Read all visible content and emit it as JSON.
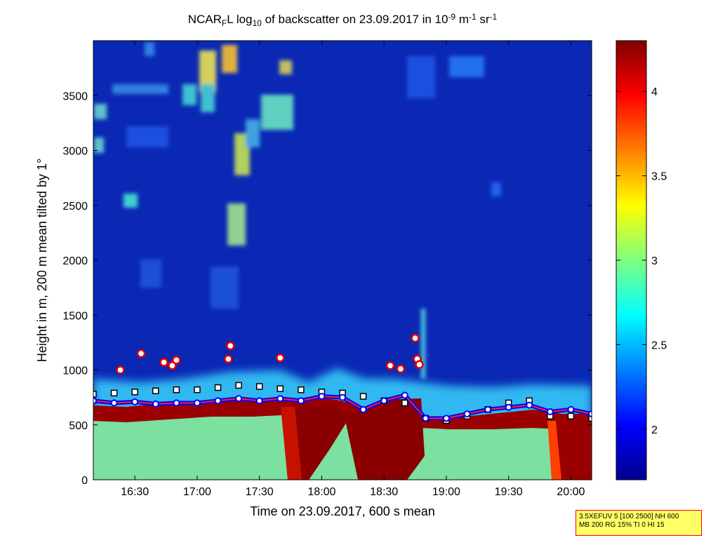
{
  "chart_data": {
    "type": "heatmap",
    "title": {
      "prefix": "NCAR",
      "sub1": "F",
      "mid1": "L log",
      "sub2": "10",
      "mid2": " of backscatter on 23.09.2017 in 10",
      "sup1": "-9",
      "mid3": " m",
      "sup2": "-1",
      "mid4": " sr",
      "sup3": "-1"
    },
    "xlabel": "Time on 23.09.2017, 600 s mean",
    "ylabel": "Height in m, 200 m mean tilted by 1°",
    "xlim": [
      "16:10",
      "20:10"
    ],
    "ylim": [
      0,
      4000
    ],
    "x_ticks": [
      "16:30",
      "17:00",
      "17:30",
      "18:00",
      "18:30",
      "19:00",
      "19:30",
      "20:00"
    ],
    "y_ticks": [
      "0",
      "500",
      "1000",
      "1500",
      "2000",
      "2500",
      "3000",
      "3500"
    ],
    "colorbar": {
      "colormap": "jet",
      "range": [
        1.7,
        4.3
      ],
      "ticks": [
        "2",
        "2.5",
        "3",
        "3.5",
        "4"
      ]
    },
    "mixing_layer_height": {
      "times": [
        "16:10",
        "16:20",
        "16:30",
        "16:40",
        "16:50",
        "17:00",
        "17:10",
        "17:20",
        "17:30",
        "17:40",
        "17:50",
        "18:00",
        "18:10",
        "18:20",
        "18:30",
        "18:40",
        "18:50",
        "19:00",
        "19:10",
        "19:20",
        "19:30",
        "19:40",
        "19:50",
        "20:00",
        "20:10"
      ],
      "heights": [
        720,
        700,
        710,
        690,
        700,
        700,
        720,
        740,
        720,
        740,
        720,
        760,
        750,
        640,
        720,
        770,
        560,
        560,
        600,
        640,
        660,
        680,
        620,
        640,
        600
      ]
    },
    "aerosol_layer_tops": {
      "times": [
        "16:10",
        "16:20",
        "16:30",
        "16:40",
        "16:50",
        "17:00",
        "17:10",
        "17:20",
        "17:30",
        "17:40",
        "17:50",
        "18:00",
        "18:10",
        "18:20",
        "18:30",
        "18:40",
        "18:50",
        "19:00",
        "19:10",
        "19:20",
        "19:30",
        "19:40",
        "19:50",
        "20:00",
        "20:10"
      ],
      "heights": [
        780,
        790,
        800,
        810,
        820,
        820,
        840,
        860,
        850,
        830,
        820,
        800,
        790,
        760,
        720,
        700,
        560,
        540,
        580,
        640,
        700,
        720,
        580,
        580,
        560
      ]
    },
    "cloud_base_markers": [
      {
        "time": "16:23",
        "height": 1000
      },
      {
        "time": "16:33",
        "height": 1150
      },
      {
        "time": "16:44",
        "height": 1070
      },
      {
        "time": "16:48",
        "height": 1040
      },
      {
        "time": "16:50",
        "height": 1090
      },
      {
        "time": "17:15",
        "height": 1100
      },
      {
        "time": "17:16",
        "height": 1220
      },
      {
        "time": "17:40",
        "height": 1110
      },
      {
        "time": "18:33",
        "height": 1040
      },
      {
        "time": "18:38",
        "height": 1010
      },
      {
        "time": "18:45",
        "height": 1290
      },
      {
        "time": "18:46",
        "height": 1100
      },
      {
        "time": "18:47",
        "height": 1050
      }
    ]
  },
  "info_box": {
    "line1": "3.5XEFUV 5 [100 2500] NH 600",
    "line2": "MB 200 RG 15% TI 0 HI 15"
  },
  "colors": {
    "background_low": "#00008f",
    "boundary_layer": "#8a0000",
    "ml_line": "#0000ff",
    "ml_marker_edge": "#ff0000"
  }
}
